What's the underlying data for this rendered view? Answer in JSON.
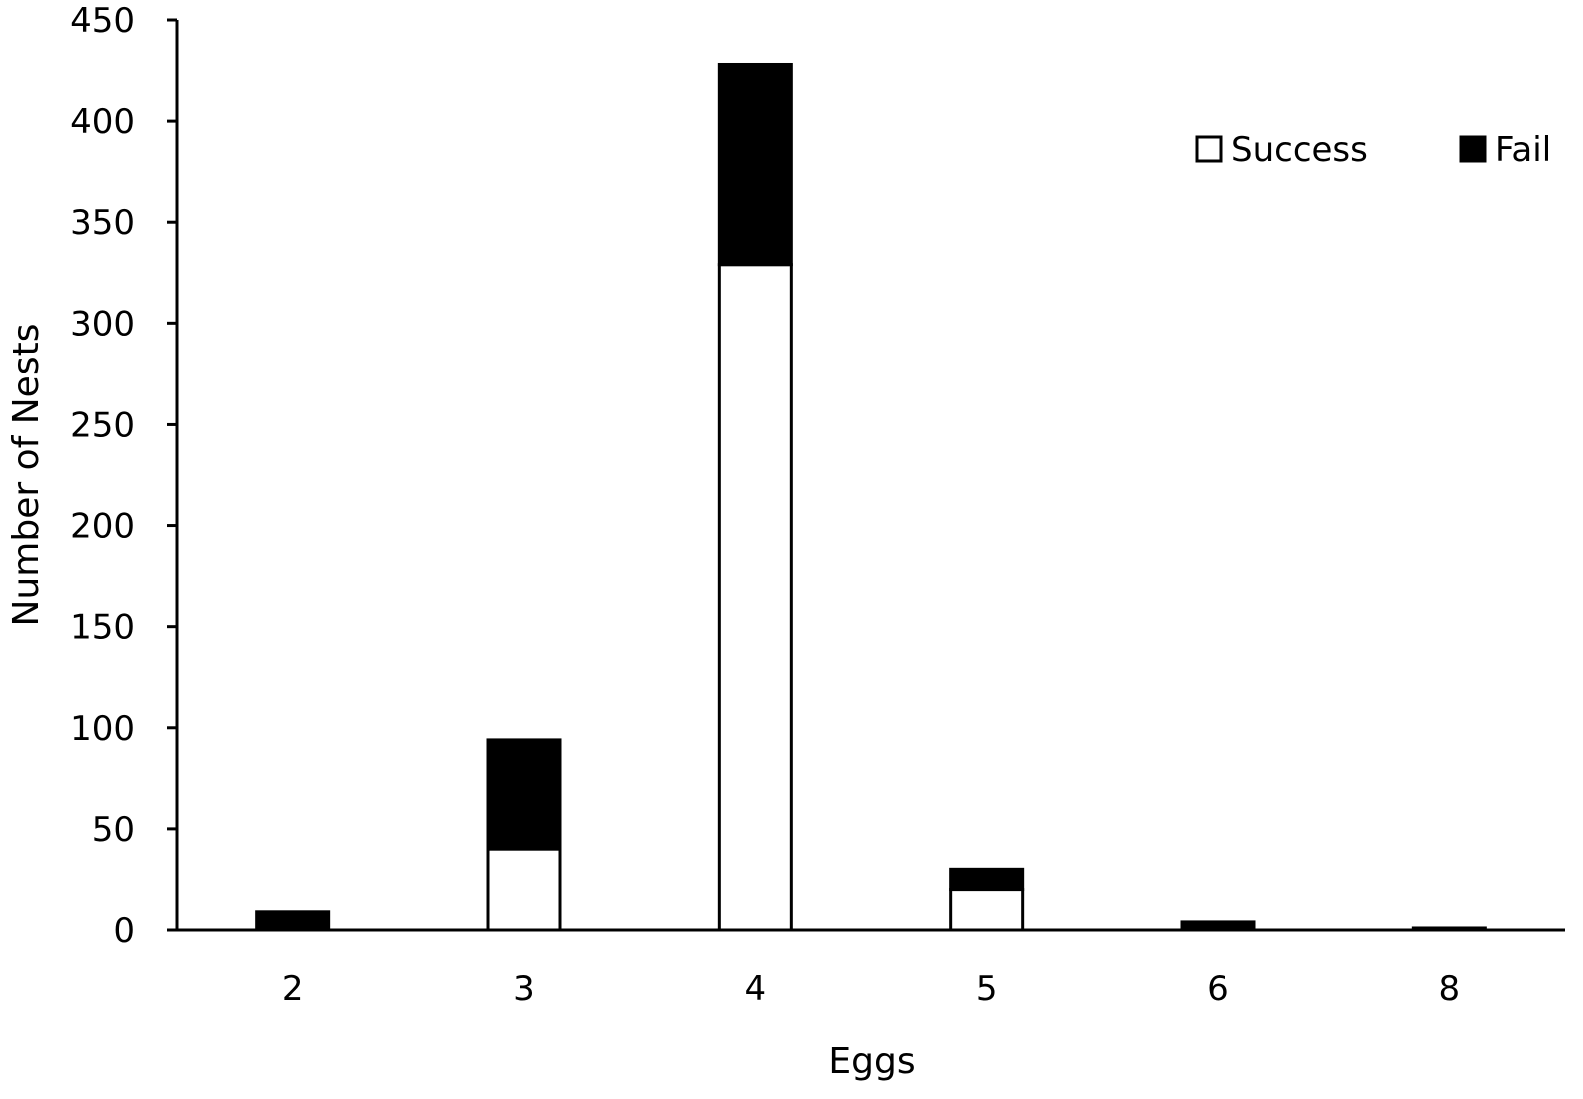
{
  "chart_data": {
    "type": "bar",
    "stacked": true,
    "categories": [
      "2",
      "3",
      "4",
      "5",
      "6",
      "8"
    ],
    "series": [
      {
        "name": "Success",
        "values": [
          0,
          40,
          329,
          20,
          0,
          0
        ],
        "color": "#ffffff"
      },
      {
        "name": "Fail",
        "values": [
          9,
          54,
          99,
          10,
          4,
          1
        ],
        "color": "#000000"
      }
    ],
    "xlabel": "Eggs",
    "ylabel": "Number of Nests",
    "ylim": [
      0,
      450
    ],
    "yticks": [
      0,
      50,
      100,
      150,
      200,
      250,
      300,
      350,
      400,
      450
    ],
    "grid": false,
    "legend_position": "top-right"
  }
}
